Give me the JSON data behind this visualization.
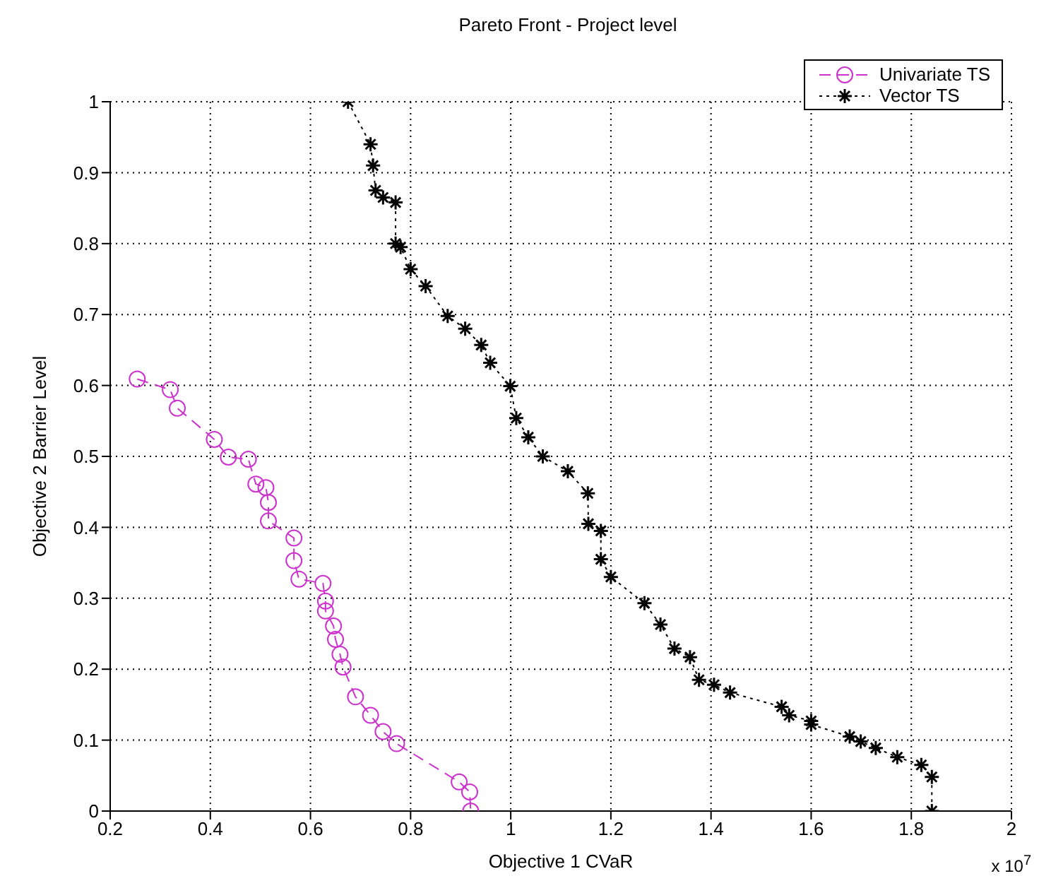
{
  "chart_data": {
    "type": "line",
    "title": "Pareto Front - Project level",
    "xlabel": "Objective 1 CVaR",
    "ylabel": "Objective 2 Barrier Level",
    "annotations": [
      "x 10$^{7}$"
    ],
    "xlim": [
      0.2,
      2
    ],
    "xticks": [
      0.2,
      0.4,
      0.6,
      0.8,
      1,
      1.2,
      1.4,
      1.6,
      1.8,
      2
    ],
    "ylim": [
      0,
      1
    ],
    "yticks": [
      0,
      0.1,
      0.2,
      0.3,
      0.4,
      0.5,
      0.6,
      0.7,
      0.8,
      0.9,
      1
    ],
    "grid": true,
    "legend": "top right",
    "series": [
      {
        "name": "Univariate TS",
        "color": "#cc33cc",
        "marker": "circle",
        "line_style": "dashed",
        "x": [
          0.254,
          0.32,
          0.334,
          0.408,
          0.436,
          0.476,
          0.491,
          0.511,
          0.516,
          0.516,
          0.567,
          0.567,
          0.577,
          0.625,
          0.63,
          0.63,
          0.646,
          0.65,
          0.659,
          0.665,
          0.69,
          0.72,
          0.745,
          0.772,
          0.897,
          0.918,
          0.92
        ],
        "values": [
          0.609,
          0.594,
          0.568,
          0.524,
          0.499,
          0.496,
          0.461,
          0.456,
          0.435,
          0.409,
          0.385,
          0.353,
          0.327,
          0.321,
          0.296,
          0.282,
          0.261,
          0.242,
          0.221,
          0.203,
          0.161,
          0.135,
          0.112,
          0.095,
          0.041,
          0.027,
          0.0
        ]
      },
      {
        "name": "Vector TS",
        "color": "#000000",
        "marker": "cross",
        "line_style": "dotted",
        "x": [
          0.675,
          0.72,
          0.725,
          0.73,
          0.745,
          0.77,
          0.77,
          0.78,
          0.8,
          0.83,
          0.874,
          0.909,
          0.941,
          0.959,
          0.999,
          1.011,
          1.035,
          1.064,
          1.114,
          1.154,
          1.155,
          1.18,
          1.18,
          1.2,
          1.267,
          1.299,
          1.327,
          1.358,
          1.376,
          1.406,
          1.438,
          1.541,
          1.556,
          1.6,
          1.6,
          1.677,
          1.699,
          1.729,
          1.772,
          1.82,
          1.841,
          1.841
        ],
        "values": [
          1.0,
          0.94,
          0.91,
          0.875,
          0.865,
          0.858,
          0.8,
          0.795,
          0.764,
          0.74,
          0.698,
          0.68,
          0.657,
          0.632,
          0.599,
          0.554,
          0.527,
          0.5,
          0.479,
          0.448,
          0.405,
          0.395,
          0.355,
          0.33,
          0.293,
          0.263,
          0.229,
          0.217,
          0.185,
          0.178,
          0.167,
          0.147,
          0.135,
          0.127,
          0.122,
          0.105,
          0.098,
          0.089,
          0.076,
          0.065,
          0.048,
          0.0
        ]
      }
    ]
  }
}
